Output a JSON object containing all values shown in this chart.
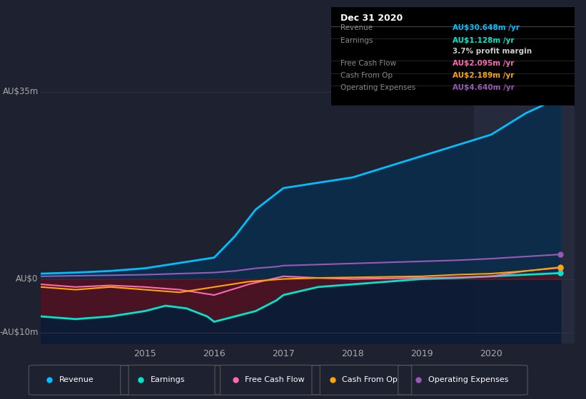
{
  "bg_color": "#1e2130",
  "plot_bg": "#1e2130",
  "title": "Dec 31 2020",
  "ylabel_35": "AU$35m",
  "ylabel_0": "AU$0",
  "ylabel_neg10": "-AU$10m",
  "ylim": [
    -12,
    38
  ],
  "xlim": [
    2013.5,
    2021.2
  ],
  "xticks": [
    2015,
    2016,
    2017,
    2018,
    2019,
    2020
  ],
  "legend_items": [
    {
      "label": "Revenue",
      "color": "#00bfff"
    },
    {
      "label": "Earnings",
      "color": "#00e5cc"
    },
    {
      "label": "Free Cash Flow",
      "color": "#ff69b4"
    },
    {
      "label": "Cash From Op",
      "color": "#ffa500"
    },
    {
      "label": "Operating Expenses",
      "color": "#9b59b6"
    }
  ],
  "revenue": {
    "x": [
      2013.5,
      2014,
      2014.5,
      2015,
      2015.5,
      2016,
      2016.3,
      2016.6,
      2016.9,
      2017,
      2017.5,
      2018,
      2018.5,
      2019,
      2019.5,
      2020,
      2020.5,
      2021.0
    ],
    "y": [
      1,
      1.2,
      1.5,
      2,
      3,
      4,
      8,
      13,
      16,
      17,
      18,
      19,
      21,
      23,
      25,
      27,
      31,
      34
    ],
    "color": "#00bfff",
    "lw": 2.0
  },
  "earnings": {
    "x": [
      2013.5,
      2014,
      2014.5,
      2015,
      2015.3,
      2015.6,
      2015.9,
      2016,
      2016.3,
      2016.6,
      2016.9,
      2017,
      2017.5,
      2018,
      2018.5,
      2019,
      2019.5,
      2020,
      2020.5,
      2021.0
    ],
    "y": [
      -7,
      -7.5,
      -7,
      -6,
      -5,
      -5.5,
      -7,
      -8,
      -7,
      -6,
      -4,
      -3,
      -1.5,
      -1,
      -0.5,
      0,
      0.2,
      0.5,
      0.8,
      1.1
    ],
    "color": "#00e5cc",
    "lw": 2.0
  },
  "free_cash_flow": {
    "x": [
      2013.5,
      2014,
      2014.5,
      2015,
      2015.5,
      2016,
      2016.5,
      2017,
      2017.5,
      2018,
      2018.5,
      2019,
      2019.5,
      2020,
      2020.5,
      2021.0
    ],
    "y": [
      -1,
      -1.5,
      -1.2,
      -1.5,
      -2,
      -3,
      -1,
      0.5,
      0.2,
      0.0,
      0.1,
      0.2,
      0.3,
      0.5,
      1.5,
      2.1
    ],
    "color": "#ff69b4",
    "lw": 1.5
  },
  "cash_from_op": {
    "x": [
      2013.5,
      2014,
      2014.5,
      2015,
      2015.5,
      2016,
      2016.5,
      2017,
      2017.5,
      2018,
      2018.5,
      2019,
      2019.5,
      2020,
      2020.5,
      2021.0
    ],
    "y": [
      -1.5,
      -2,
      -1.5,
      -2,
      -2.5,
      -1.5,
      -0.5,
      0,
      0.2,
      0.3,
      0.4,
      0.5,
      0.8,
      1.0,
      1.5,
      2.2
    ],
    "color": "#ffa500",
    "lw": 1.5
  },
  "op_expenses": {
    "x": [
      2013.5,
      2014,
      2014.5,
      2015,
      2015.5,
      2016,
      2016.3,
      2016.6,
      2016.9,
      2017,
      2017.5,
      2018,
      2018.5,
      2019,
      2019.5,
      2020,
      2020.5,
      2021.0
    ],
    "y": [
      0.5,
      0.6,
      0.7,
      0.8,
      1.0,
      1.2,
      1.5,
      2.0,
      2.3,
      2.5,
      2.7,
      2.9,
      3.1,
      3.3,
      3.5,
      3.8,
      4.2,
      4.6
    ],
    "color": "#9b59b6",
    "lw": 1.5
  },
  "highlight_x_start": 2019.75,
  "highlight_x_end": 2021.2,
  "highlight_color": "#252a3d",
  "grid_color": "#2e3347",
  "tick_color": "#aaaaaa",
  "label_color": "#aaaaaa",
  "info_box": {
    "title": "Dec 31 2020",
    "rows": [
      {
        "label": "Revenue",
        "value": "AU$30.648m /yr",
        "value_color": "#00bfff",
        "has_divider": true
      },
      {
        "label": "Earnings",
        "value": "AU$1.128m /yr",
        "value_color": "#00e5cc",
        "has_divider": true
      },
      {
        "label": "",
        "value": "3.7% profit margin",
        "value_color": "#cccccc",
        "has_divider": false
      },
      {
        "label": "Free Cash Flow",
        "value": "AU$2.095m /yr",
        "value_color": "#ff69b4",
        "has_divider": true
      },
      {
        "label": "Cash From Op",
        "value": "AU$2.189m /yr",
        "value_color": "#ffa500",
        "has_divider": true
      },
      {
        "label": "Operating Expenses",
        "value": "AU$4.640m /yr",
        "value_color": "#9b59b6",
        "has_divider": true
      }
    ]
  }
}
